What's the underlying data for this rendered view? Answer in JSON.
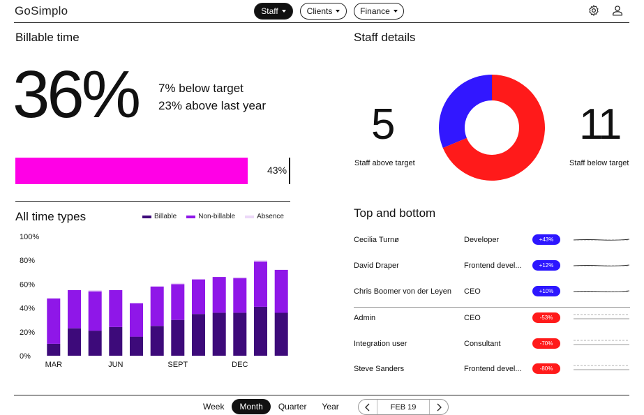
{
  "app": {
    "logo": "GoSimplo",
    "logo_accent": "#e0007a"
  },
  "nav": {
    "tabs": [
      {
        "label": "Staff",
        "active": true
      },
      {
        "label": "Clients",
        "active": false
      },
      {
        "label": "Finance",
        "active": false
      }
    ],
    "icons": [
      "gear-icon",
      "user-icon"
    ]
  },
  "billable": {
    "title": "Billable time",
    "value": "36%",
    "line1": "7% below target",
    "line2": "23% above last year",
    "progress": 0.36,
    "progress_label": "43%",
    "target": 0.43,
    "bar_color": "#ff00e6"
  },
  "time_types": {
    "title": "All time types",
    "legend": [
      {
        "label": "Billable",
        "color": "#3d0a7a"
      },
      {
        "label": "Non-billable",
        "color": "#8f17e8"
      },
      {
        "label": "Absence",
        "color": "#ecd8f8"
      }
    ]
  },
  "chart_data": {
    "type": "bar",
    "stacked": true,
    "x_tick_labels": [
      "MAR",
      "JUN",
      "SEPT",
      "DEC"
    ],
    "x_tick_indices": [
      0,
      3,
      6,
      9
    ],
    "yticks": [
      "100%",
      "80%",
      "60%",
      "40%",
      "20%",
      "0%"
    ],
    "ylim": [
      0,
      100
    ],
    "series": [
      {
        "name": "Billable",
        "color": "#3d0a7a",
        "values": [
          10,
          23,
          21,
          24,
          16,
          25,
          30,
          35,
          36,
          36,
          41,
          36
        ]
      },
      {
        "name": "Non-billable",
        "color": "#8f17e8",
        "values": [
          38,
          32,
          33,
          31,
          28,
          33,
          30,
          29,
          30,
          29,
          38,
          36
        ]
      },
      {
        "name": "Absence",
        "color": "#ecd8f8",
        "values": [
          0,
          0,
          1,
          0,
          0,
          0,
          1,
          0,
          0,
          1,
          1,
          0
        ]
      }
    ]
  },
  "staff": {
    "title": "Staff details",
    "above": {
      "value": "5",
      "label": "Staff above target"
    },
    "below": {
      "value": "11",
      "label": "Staff below target"
    },
    "donut": [
      {
        "name": "above",
        "value": 5,
        "color": "#3217ff"
      },
      {
        "name": "below",
        "value": 11,
        "color": "#ff1a1a"
      }
    ]
  },
  "top_bottom": {
    "title": "Top and bottom",
    "rows": [
      {
        "name": "Cecilia Turnø",
        "role": "Developer",
        "badge": "+43%",
        "positive": true
      },
      {
        "name": "David Draper",
        "role": "Frontend devel...",
        "badge": "+12%",
        "positive": true
      },
      {
        "name": "Chris Boomer von der Leyen",
        "role": "CEO",
        "badge": "+10%",
        "positive": true
      },
      {
        "name": "Admin",
        "role": "CEO",
        "badge": "-53%",
        "positive": false
      },
      {
        "name": "Integration user",
        "role": "Consultant",
        "badge": "-70%",
        "positive": false
      },
      {
        "name": "Steve Sanders",
        "role": "Frontend devel...",
        "badge": "-80%",
        "positive": false
      }
    ],
    "positive_color": "#2d17ff",
    "negative_color": "#ff1a1a"
  },
  "footer": {
    "periods": [
      {
        "label": "Week",
        "active": false
      },
      {
        "label": "Month",
        "active": true
      },
      {
        "label": "Quarter",
        "active": false
      },
      {
        "label": "Year",
        "active": false
      }
    ],
    "date": "FEB 19"
  }
}
